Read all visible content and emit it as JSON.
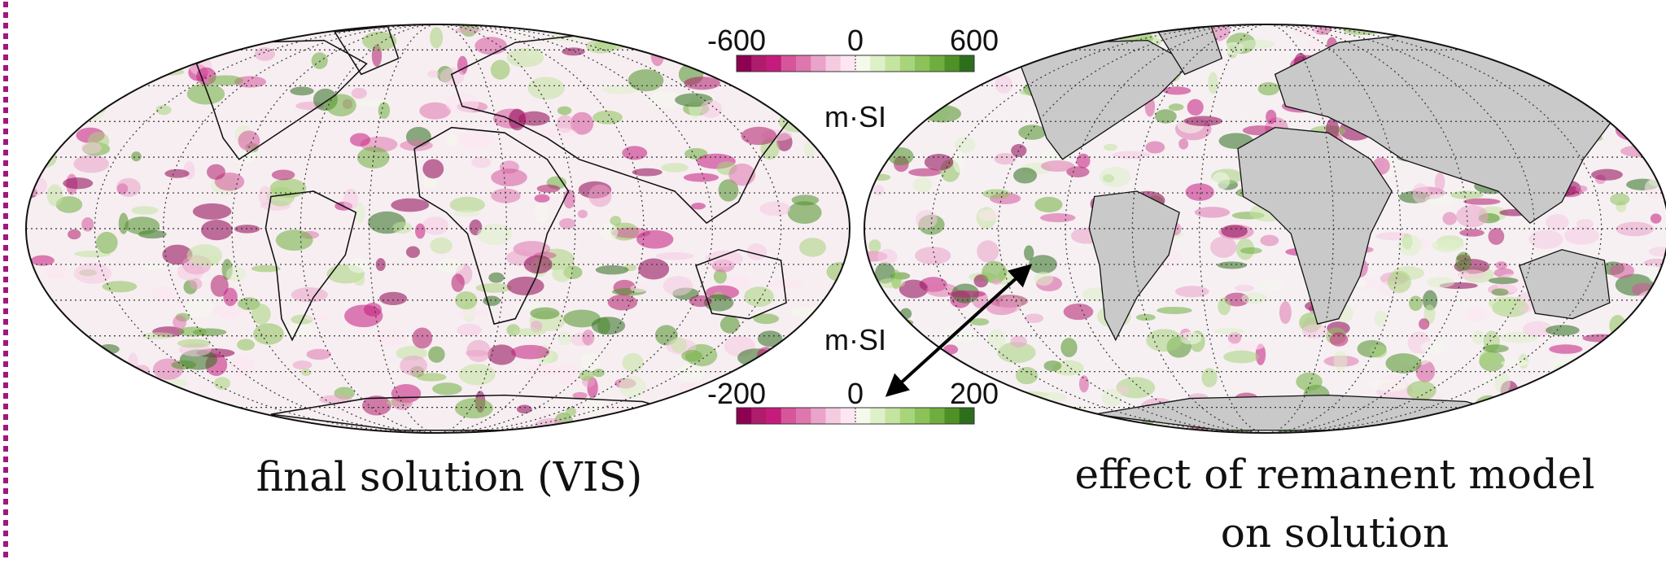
{
  "colorbars": [
    {
      "range": [
        -600,
        600
      ],
      "ticks": [
        -600,
        0,
        600
      ],
      "unit": "m·SI",
      "colors": [
        "#8e0152",
        "#b01c6c",
        "#c51b7d",
        "#d6559b",
        "#de77ae",
        "#eaa3c9",
        "#f5cbe2",
        "#fde6f1",
        "#f4f9ec",
        "#ddf0c8",
        "#c4e4a0",
        "#a8d47b",
        "#8cc25a",
        "#6fae3e",
        "#4f9126",
        "#2d6e1c"
      ]
    },
    {
      "range": [
        -200,
        200
      ],
      "ticks": [
        -200,
        0,
        200
      ],
      "unit": "m·SI",
      "colors": [
        "#8e0152",
        "#b01c6c",
        "#c51b7d",
        "#d6559b",
        "#de77ae",
        "#eaa3c9",
        "#f5cbe2",
        "#fde6f1",
        "#f4f9ec",
        "#ddf0c8",
        "#c4e4a0",
        "#a8d47b",
        "#8cc25a",
        "#6fae3e",
        "#4f9126",
        "#2d6e1c"
      ]
    }
  ],
  "captions": {
    "left": "final solution (VIS)",
    "right": [
      "effect of remanent model",
      "on solution"
    ]
  }
}
